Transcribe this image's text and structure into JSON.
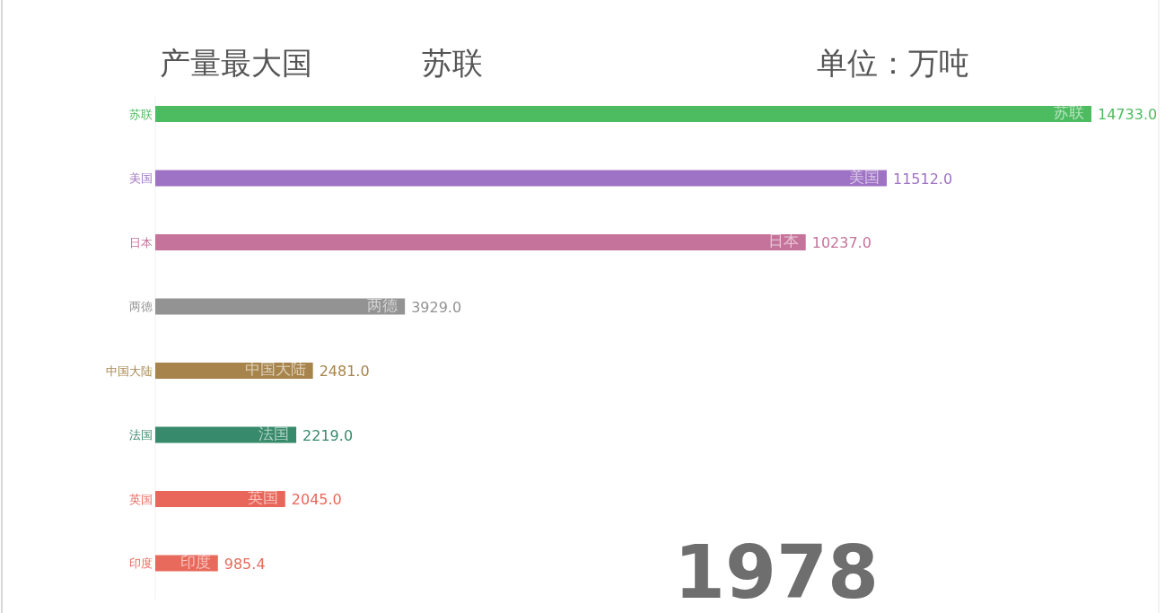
{
  "chart_data": {
    "type": "bar",
    "orientation": "horizontal",
    "title": "产量最大国",
    "subtitle": "苏联",
    "annotations": [
      "单位：万吨",
      "1978"
    ],
    "categories": [
      "苏联",
      "美国",
      "日本",
      "两德",
      "中国大陆",
      "法国",
      "英国",
      "印度"
    ],
    "values": [
      14733.0,
      11512.0,
      10237.0,
      3929.0,
      2481.0,
      2219.0,
      2045.0,
      985.4
    ],
    "value_labels": [
      "14733.0",
      "11512.0",
      "10237.0",
      "3929.0",
      "2481.0",
      "2219.0",
      "2045.0",
      "985.4"
    ],
    "colors": [
      "#4dbb60",
      "#9e72c4",
      "#c5739a",
      "#939393",
      "#a7844b",
      "#378a6b",
      "#e8675a",
      "#e86a5c"
    ]
  }
}
